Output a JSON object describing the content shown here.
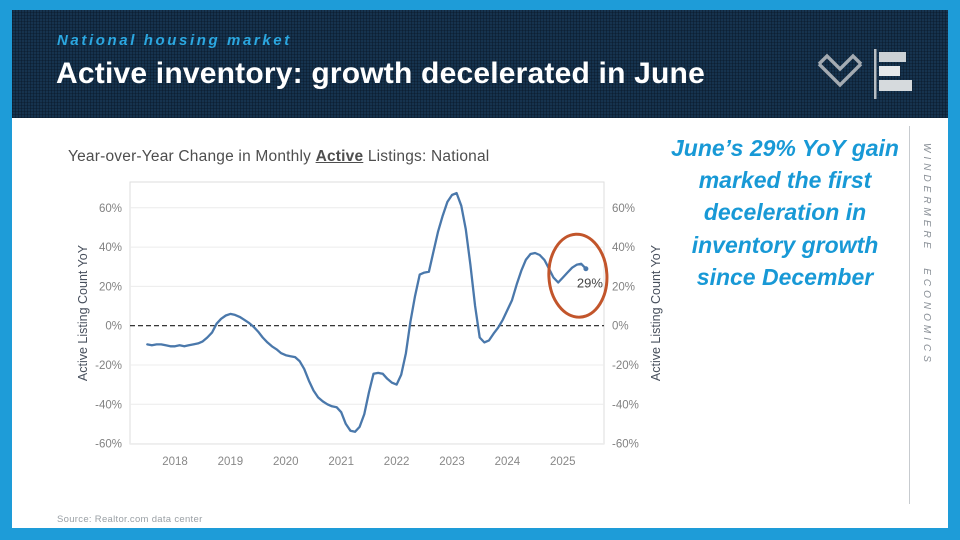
{
  "colors": {
    "accent": "#1E9CD8",
    "header_navy": "#16334E",
    "line": "#4A78AB",
    "annotation": "#C2552B",
    "callout": "#1899D6"
  },
  "header": {
    "eyebrow": "National housing market",
    "title": "Active inventory: growth decelerated in June"
  },
  "logo": {
    "icons": [
      "windermere-w-icon",
      "bar-chart-e-icon"
    ]
  },
  "chart": {
    "title_prefix": "Year-over-Year Change in Monthly ",
    "title_emphasis": "Active",
    "title_suffix": " Listings: National"
  },
  "chart_data": {
    "type": "line",
    "title": "Year-over-Year Change in Monthly Active Listings: National",
    "ylabel_left": "Active Listing Count YoY",
    "ylabel_right": "Active Listing Count YoY",
    "ylim": [
      -70,
      75
    ],
    "yticks": [
      60,
      40,
      20,
      0,
      -20,
      -40,
      -60
    ],
    "ytick_labels": [
      "60%",
      "40%",
      "20%",
      "0%",
      "-20%",
      "-40%",
      "-60%"
    ],
    "xticks": [
      2018,
      2019,
      2020,
      2021,
      2022,
      2023,
      2024,
      2025
    ],
    "zero_line": "dashed-black",
    "grid": "horizontal-light",
    "legend": "none",
    "series": [
      {
        "name": "YoY change in monthly active listings",
        "x": [
          2017.5,
          2017.583,
          2017.667,
          2017.75,
          2017.833,
          2017.917,
          2018.0,
          2018.083,
          2018.167,
          2018.25,
          2018.333,
          2018.417,
          2018.5,
          2018.583,
          2018.667,
          2018.75,
          2018.833,
          2018.917,
          2019.0,
          2019.083,
          2019.167,
          2019.25,
          2019.333,
          2019.417,
          2019.5,
          2019.583,
          2019.667,
          2019.75,
          2019.833,
          2019.917,
          2020.0,
          2020.083,
          2020.167,
          2020.25,
          2020.333,
          2020.417,
          2020.5,
          2020.583,
          2020.667,
          2020.75,
          2020.833,
          2020.917,
          2021.0,
          2021.083,
          2021.167,
          2021.25,
          2021.333,
          2021.417,
          2021.5,
          2021.583,
          2021.667,
          2021.75,
          2021.833,
          2021.917,
          2022.0,
          2022.083,
          2022.167,
          2022.25,
          2022.333,
          2022.417,
          2022.5,
          2022.583,
          2022.667,
          2022.75,
          2022.833,
          2022.917,
          2023.0,
          2023.083,
          2023.167,
          2023.25,
          2023.333,
          2023.417,
          2023.5,
          2023.583,
          2023.667,
          2023.75,
          2023.833,
          2023.917,
          2024.0,
          2024.083,
          2024.167,
          2024.25,
          2024.333,
          2024.417,
          2024.5,
          2024.583,
          2024.667,
          2024.75,
          2024.833,
          2024.917,
          2025.0,
          2025.083,
          2025.167,
          2025.25,
          2025.333,
          2025.417
        ],
        "y": [
          -9.5,
          -10,
          -9.5,
          -9.5,
          -10,
          -10.5,
          -10.5,
          -10,
          -10.5,
          -10,
          -9.5,
          -9,
          -8,
          -6,
          -3.5,
          1,
          3.5,
          5.2,
          6,
          5.5,
          4.5,
          3,
          1.5,
          -0.5,
          -3,
          -6,
          -8.5,
          -10.5,
          -12,
          -14,
          -15,
          -15.5,
          -16,
          -18,
          -22,
          -28,
          -33,
          -36.5,
          -38.5,
          -40,
          -41,
          -41.5,
          -44,
          -50,
          -53.5,
          -54,
          -51.5,
          -45,
          -34,
          -24.5,
          -24,
          -24.5,
          -27,
          -29,
          -30,
          -25,
          -14,
          2,
          15,
          26,
          27,
          27.5,
          38,
          48,
          56,
          63,
          66.5,
          67.5,
          61,
          49,
          31,
          10,
          -6,
          -8.5,
          -7.5,
          -4,
          -1,
          3,
          8,
          13,
          21,
          28,
          33.5,
          36.5,
          37,
          36,
          33.5,
          29,
          24.5,
          22,
          24.5,
          27,
          29.5,
          31,
          31.5,
          29
        ]
      }
    ],
    "annotation": {
      "text": "29%",
      "point_x": 2025.417,
      "point_y": 29,
      "shape": "ellipse",
      "color": "#C2552B"
    }
  },
  "callout": {
    "text": "June’s 29% YoY gain marked the first deceleration in inventory growth since December"
  },
  "sidebar": {
    "brand_vertical": "WINDERMERE ECONOMICS"
  },
  "footer": {
    "source": "Source: Realtor.com data center"
  }
}
